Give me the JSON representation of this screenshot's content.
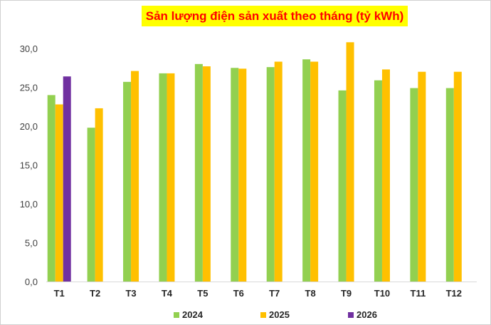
{
  "chart_data": {
    "type": "bar",
    "title": "Sản lượng điện sản xuất theo tháng (tỷ kWh)",
    "categories": [
      "T1",
      "T2",
      "T3",
      "T4",
      "T5",
      "T6",
      "T7",
      "T8",
      "T9",
      "T10",
      "T11",
      "T12"
    ],
    "series": [
      {
        "name": "2024",
        "color": "#92d050",
        "values": [
          24.0,
          19.8,
          25.7,
          26.8,
          28.0,
          27.5,
          27.6,
          28.6,
          24.6,
          25.9,
          24.9,
          24.9
        ]
      },
      {
        "name": "2025",
        "color": "#ffc000",
        "values": [
          22.8,
          22.3,
          27.1,
          26.8,
          27.7,
          27.4,
          28.3,
          28.3,
          30.8,
          27.3,
          27.0,
          27.0
        ]
      },
      {
        "name": "2026",
        "color": "#7030a0",
        "values": [
          26.4,
          null,
          null,
          null,
          null,
          null,
          null,
          null,
          null,
          null,
          null,
          null
        ]
      }
    ],
    "yticks": [
      "0,0",
      "5,0",
      "10,0",
      "15,0",
      "20,0",
      "25,0",
      "30,0"
    ],
    "ylim": [
      0,
      30
    ],
    "xlabel": "",
    "ylabel": "",
    "legend_position": "bottom",
    "grid": false
  }
}
